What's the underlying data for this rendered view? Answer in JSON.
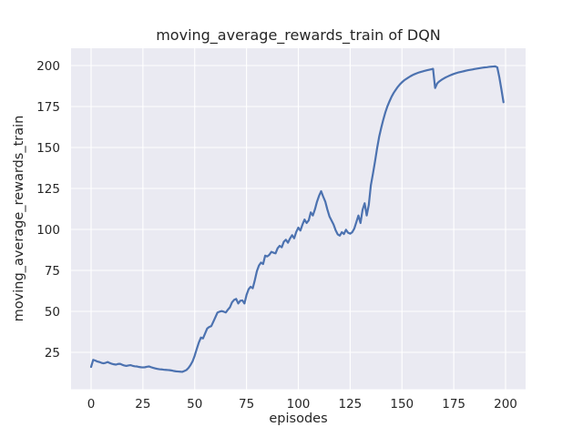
{
  "figure": {
    "title": "moving_average_rewards_train of DQN",
    "xlabel": "episodes",
    "ylabel": "moving_average_rewards_train"
  },
  "chart_data": {
    "type": "line",
    "title": "moving_average_rewards_train of DQN",
    "xlabel": "episodes",
    "ylabel": "moving_average_rewards_train",
    "x_ticks": [
      0,
      25,
      50,
      75,
      100,
      125,
      150,
      175,
      200
    ],
    "y_ticks": [
      25,
      50,
      75,
      100,
      125,
      150,
      175,
      200
    ],
    "xlim": [
      -10,
      210
    ],
    "ylim": [
      3,
      210
    ],
    "grid": true,
    "legend_visible": false,
    "x_note": "x values are episode indices 0..199",
    "series": [
      {
        "name": "moving_average_rewards_train",
        "values": [
          16.1,
          20.4,
          20.0,
          19.4,
          19.1,
          18.6,
          18.3,
          18.6,
          19.1,
          18.5,
          18.0,
          17.7,
          17.5,
          17.9,
          18.0,
          17.4,
          17.0,
          16.7,
          17.0,
          17.2,
          16.8,
          16.5,
          16.4,
          16.1,
          15.9,
          15.8,
          15.9,
          16.2,
          16.4,
          15.9,
          15.5,
          15.2,
          14.9,
          14.7,
          14.6,
          14.4,
          14.3,
          14.2,
          14.1,
          13.9,
          13.6,
          13.4,
          13.3,
          13.2,
          13.1,
          13.6,
          14.2,
          15.5,
          17.3,
          19.6,
          23.0,
          27.1,
          31.0,
          34.0,
          33.5,
          36.5,
          39.5,
          40.5,
          41.0,
          43.7,
          46.5,
          49.3,
          49.8,
          50.2,
          49.8,
          49.3,
          51.0,
          52.5,
          55.5,
          57.0,
          57.6,
          54.8,
          56.5,
          56.7,
          54.8,
          60.0,
          63.5,
          65.0,
          64.1,
          69.0,
          74.5,
          78.0,
          79.8,
          78.9,
          84.0,
          83.5,
          84.5,
          86.3,
          85.8,
          85.4,
          88.5,
          90.0,
          89.1,
          92.5,
          93.7,
          91.9,
          94.5,
          96.5,
          94.6,
          98.5,
          101.1,
          99.3,
          103.0,
          106.0,
          103.9,
          105.5,
          110.4,
          108.5,
          112.2,
          116.9,
          120.5,
          123.3,
          120.0,
          117.0,
          112.2,
          108.0,
          105.5,
          103.0,
          99.5,
          97.0,
          96.2,
          98.3,
          97.2,
          99.8,
          98.0,
          97.4,
          98.3,
          100.5,
          104.5,
          108.5,
          103.9,
          112.0,
          116.0,
          108.5,
          115.0,
          127.0,
          134.0,
          141.5,
          149.5,
          156.5,
          162.0,
          167.0,
          171.5,
          175.2,
          178.2,
          181.0,
          183.3,
          185.2,
          187.0,
          188.5,
          189.8,
          190.9,
          191.8,
          192.6,
          193.4,
          194.1,
          194.7,
          195.2,
          195.7,
          196.1,
          196.4,
          196.8,
          197.1,
          197.4,
          197.7,
          198.0,
          186.3,
          189.1,
          190.3,
          191.2,
          192.0,
          192.7,
          193.3,
          193.9,
          194.4,
          194.9,
          195.3,
          195.7,
          196.0,
          196.3,
          196.6,
          196.9,
          197.2,
          197.4,
          197.6,
          197.9,
          198.1,
          198.3,
          198.5,
          198.7,
          198.9,
          199.0,
          199.2,
          199.3,
          199.4,
          199.5,
          198.9,
          192.8,
          185.4,
          177.6
        ]
      }
    ],
    "colors": {
      "line": "#4C72B0",
      "plot_background": "#EAEAF2",
      "grid": "#FFFFFF",
      "text": "#262626",
      "figure_background": "#FFFFFF"
    }
  }
}
